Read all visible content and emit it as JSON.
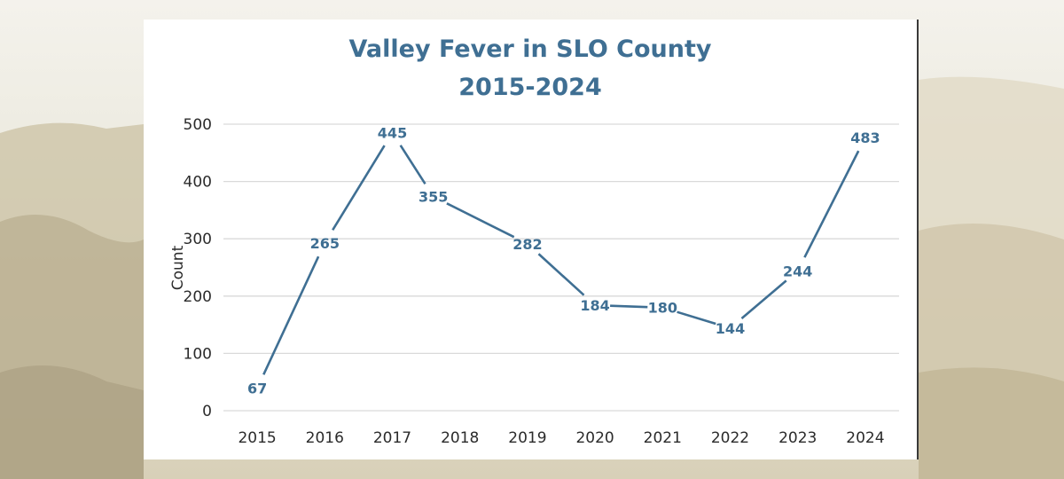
{
  "colors": {
    "series": "#3f6f93",
    "grid": "#d9d9d9",
    "text": "#2b2b2b",
    "card": "#ffffff"
  },
  "chart_data": {
    "type": "line",
    "title_line1": "Valley Fever in SLO County",
    "title_line2": "2015-2024",
    "ylabel": "Count",
    "xlabel": "",
    "ylim": [
      0,
      500
    ],
    "y_ticks": [
      0,
      100,
      200,
      300,
      400,
      500
    ],
    "grid": true,
    "legend": "none",
    "categories": [
      "2015",
      "2016",
      "2017",
      "2018",
      "2019",
      "2020",
      "2021",
      "2022",
      "2023",
      "2024"
    ],
    "series": [
      {
        "values": [
          67,
          265,
          445,
          355,
          282,
          184,
          180,
          144,
          244,
          483
        ],
        "data_labels": [
          "67",
          "265",
          "445",
          "355",
          "282",
          "184",
          "180",
          "144",
          "244",
          "483"
        ]
      }
    ]
  }
}
